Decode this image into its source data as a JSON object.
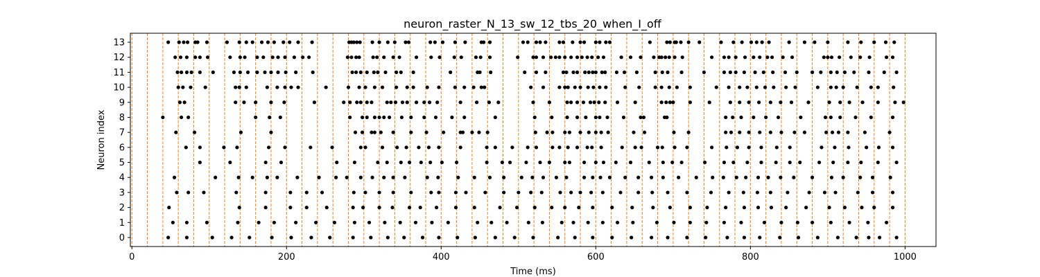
{
  "chart_data": {
    "type": "scatter",
    "title": "neuron_raster_N_13_sw_12_tbs_20_when_I_off",
    "xlabel": "Time (ms)",
    "ylabel": "Neuron index",
    "xlim": [
      -2,
      1040
    ],
    "ylim": [
      -0.6,
      13.6
    ],
    "xticks": [
      0,
      200,
      400,
      600,
      800,
      1000
    ],
    "yticks": [
      0,
      1,
      2,
      3,
      4,
      5,
      6,
      7,
      8,
      9,
      10,
      11,
      12,
      13
    ],
    "grid": false,
    "marker_color": "#000000",
    "vline_color": "#ff7f0e",
    "vline_style": "dashed",
    "vlines": [
      0,
      20,
      40,
      60,
      80,
      100,
      120,
      140,
      160,
      180,
      200,
      220,
      240,
      260,
      280,
      300,
      320,
      340,
      360,
      380,
      400,
      420,
      440,
      460,
      480,
      500,
      520,
      540,
      560,
      580,
      600,
      620,
      640,
      660,
      680,
      700,
      720,
      740,
      760,
      780,
      800,
      820,
      840,
      860,
      880,
      900,
      920,
      940,
      960,
      980,
      1000
    ],
    "spikes": [
      {
        "neuron": 13,
        "times": [
          47,
          61,
          67,
          72,
          82,
          85,
          97,
          123,
          139,
          148,
          156,
          168,
          176,
          184,
          196,
          204,
          215,
          233,
          281,
          284,
          287,
          291,
          295,
          311,
          320,
          331,
          340,
          354,
          358,
          386,
          392,
          402,
          418,
          431,
          452,
          455,
          463,
          506,
          512,
          523,
          528,
          535,
          553,
          558,
          570,
          580,
          585,
          600,
          605,
          613,
          618,
          670,
          692,
          696,
          702,
          704,
          710,
          720,
          734,
          762,
          778,
          789,
          801,
          808,
          815,
          824,
          850,
          870,
          883,
          900,
          926,
          943,
          960,
          975,
          986
        ]
      },
      {
        "neuron": 12,
        "times": [
          56,
          63,
          71,
          82,
          88,
          98,
          127,
          140,
          146,
          162,
          170,
          182,
          189,
          198,
          210,
          221,
          229,
          279,
          284,
          290,
          294,
          312,
          317,
          326,
          338,
          346,
          368,
          387,
          398,
          417,
          426,
          445,
          451,
          463,
          499,
          519,
          523,
          532,
          542,
          548,
          553,
          560,
          568,
          576,
          582,
          589,
          595,
          603,
          610,
          633,
          645,
          658,
          675,
          682,
          685,
          690,
          695,
          702,
          712,
          750,
          766,
          772,
          781,
          793,
          804,
          812,
          822,
          828,
          842,
          854,
          895,
          900,
          905,
          915,
          930,
          942,
          954,
          976,
          984
        ]
      },
      {
        "neuron": 11,
        "times": [
          59,
          64,
          71,
          77,
          88,
          105,
          132,
          140,
          150,
          162,
          172,
          180,
          189,
          199,
          212,
          234,
          285,
          290,
          296,
          304,
          313,
          318,
          328,
          342,
          348,
          364,
          412,
          447,
          450,
          464,
          508,
          523,
          535,
          558,
          562,
          571,
          576,
          586,
          591,
          596,
          600,
          608,
          612,
          627,
          637,
          653,
          677,
          686,
          693,
          711,
          740,
          766,
          774,
          781,
          792,
          806,
          817,
          829,
          845,
          860,
          880,
          891,
          904,
          912,
          922,
          934,
          953,
          973,
          989
        ]
      },
      {
        "neuron": 10,
        "times": [
          60,
          66,
          76,
          95,
          134,
          139,
          148,
          175,
          188,
          198,
          206,
          215,
          251,
          280,
          294,
          302,
          314,
          324,
          342,
          356,
          364,
          382,
          397,
          418,
          430,
          442,
          452,
          456,
          516,
          532,
          553,
          560,
          564,
          573,
          580,
          590,
          597,
          605,
          613,
          638,
          656,
          677,
          685,
          695,
          705,
          722,
          756,
          772,
          786,
          796,
          808,
          819,
          830,
          846,
          858,
          887,
          904,
          911,
          920,
          938,
          956,
          965,
          985
        ]
      },
      {
        "neuron": 9,
        "times": [
          62,
          68,
          134,
          145,
          160,
          180,
          197,
          236,
          274,
          282,
          291,
          296,
          304,
          310,
          330,
          335,
          341,
          350,
          356,
          368,
          378,
          385,
          395,
          425,
          446,
          462,
          474,
          519,
          540,
          563,
          568,
          576,
          584,
          593,
          598,
          604,
          612,
          628,
          651,
          685,
          691,
          696,
          700,
          722,
          747,
          774,
          786,
          798,
          811,
          826,
          839,
          853,
          875,
          902,
          916,
          928,
          945,
          965,
          987,
          998
        ]
      },
      {
        "neuron": 8,
        "times": [
          40,
          64,
          73,
          160,
          178,
          192,
          282,
          298,
          304,
          314,
          320,
          326,
          333,
          349,
          361,
          378,
          393,
          414,
          430,
          470,
          521,
          543,
          563,
          576,
          587,
          600,
          605,
          615,
          636,
          658,
          662,
          689,
          692,
          768,
          777,
          788,
          804,
          820,
          836,
          865,
          897,
          904,
          916,
          936,
          956,
          984
        ]
      },
      {
        "neuron": 7,
        "times": [
          57,
          81,
          141,
          180,
          289,
          298,
          310,
          314,
          322,
          338,
          361,
          381,
          403,
          425,
          428,
          440,
          449,
          460,
          522,
          537,
          544,
          560,
          566,
          580,
          591,
          600,
          607,
          616,
          649,
          663,
          701,
          720,
          768,
          775,
          786,
          798,
          812,
          826,
          840,
          857,
          870,
          898,
          906,
          914,
          926,
          948,
          980
        ]
      },
      {
        "neuron": 6,
        "times": [
          70,
          88,
          119,
          136,
          177,
          198,
          231,
          259,
          296,
          302,
          324,
          343,
          355,
          371,
          384,
          397,
          425,
          459,
          470,
          492,
          512,
          523,
          544,
          553,
          564,
          576,
          589,
          595,
          607,
          634,
          651,
          659,
          680,
          686,
          702,
          718,
          750,
          769,
          783,
          798,
          814,
          834,
          851,
          892,
          909,
          927,
          950,
          966,
          984
        ]
      },
      {
        "neuron": 5,
        "times": [
          88,
          127,
          173,
          193,
          265,
          288,
          318,
          330,
          348,
          359,
          374,
          386,
          401,
          420,
          459,
          479,
          489,
          510,
          528,
          540,
          560,
          566,
          585,
          600,
          610,
          626,
          645,
          669,
          687,
          699,
          711,
          741,
          766,
          778,
          796,
          814,
          833,
          851,
          864,
          889,
          907,
          926,
          943,
          965,
          989
        ]
      },
      {
        "neuron": 4,
        "times": [
          55,
          108,
          138,
          156,
          175,
          188,
          214,
          242,
          264,
          278,
          296,
          311,
          326,
          338,
          353,
          382,
          396,
          422,
          443,
          463,
          481,
          504,
          518,
          532,
          549,
          562,
          585,
          596,
          606,
          618,
          638,
          655,
          672,
          687,
          707,
          730,
          751,
          765,
          782,
          794,
          810,
          823,
          839,
          856,
          880,
          905,
          920,
          942,
          958,
          981
        ]
      },
      {
        "neuron": 3,
        "times": [
          58,
          73,
          93,
          135,
          173,
          205,
          226,
          246,
          287,
          302,
          320,
          338,
          361,
          387,
          397,
          419,
          432,
          457,
          481,
          500,
          516,
          530,
          554,
          568,
          580,
          594,
          609,
          632,
          655,
          673,
          693,
          718,
          749,
          772,
          791,
          809,
          826,
          848,
          876,
          896,
          910,
          939,
          958,
          984
        ]
      },
      {
        "neuron": 2,
        "times": [
          48,
          139,
          173,
          205,
          226,
          252,
          286,
          299,
          320,
          337,
          359,
          373,
          394,
          419,
          443,
          476,
          498,
          521,
          543,
          560,
          578,
          596,
          621,
          647,
          674,
          696,
          722,
          744,
          768,
          792,
          810,
          827,
          846,
          872,
          902,
          922,
          944,
          960,
          984
        ]
      },
      {
        "neuron": 1,
        "times": [
          53,
          71,
          97,
          137,
          164,
          184,
          212,
          238,
          262,
          288,
          307,
          327,
          347,
          367,
          388,
          409,
          447,
          465,
          485,
          513,
          531,
          556,
          571,
          590,
          609,
          628,
          648,
          679,
          701,
          722,
          743,
          766,
          788,
          818,
          840,
          861,
          880,
          904,
          928,
          952,
          976
        ]
      },
      {
        "neuron": 0,
        "times": [
          47,
          71,
          104,
          129,
          152,
          181,
          206,
          232,
          256,
          286,
          309,
          331,
          352,
          376,
          397,
          421,
          444,
          470,
          495,
          519,
          551,
          573,
          596,
          621,
          646,
          672,
          693,
          718,
          742,
          770,
          792,
          812,
          838,
          862,
          887,
          913,
          937,
          953,
          967,
          989
        ]
      }
    ]
  }
}
